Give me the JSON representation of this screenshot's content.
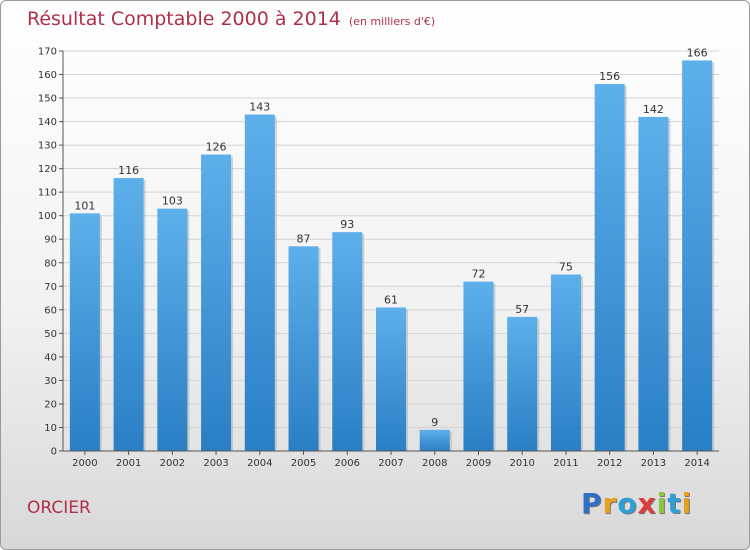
{
  "title": "Résultat Comptable 2000 à 2014",
  "subtitle": "(en milliers d'€)",
  "commune": "ORCIER",
  "logo": {
    "letters": [
      {
        "ch": "P",
        "color": "#2f6fc6"
      },
      {
        "ch": "r",
        "color": "#e8a020"
      },
      {
        "ch": "o",
        "color": "#2f9fd8"
      },
      {
        "ch": "x",
        "color": "#e03a3a"
      },
      {
        "ch": "i",
        "color": "#8cc63f"
      },
      {
        "ch": "t",
        "color": "#2f9fd8"
      },
      {
        "ch": "i",
        "color": "#e8a020"
      }
    ]
  },
  "colors": {
    "bar_top": "#5db0ea",
    "bar_bottom": "#2a7ec4",
    "title": "#b0304a"
  },
  "chart_data": {
    "type": "bar",
    "title": "Résultat Comptable 2000 à 2014",
    "subtitle": "(en milliers d'€)",
    "categories": [
      "2000",
      "2001",
      "2002",
      "2003",
      "2004",
      "2005",
      "2006",
      "2007",
      "2008",
      "2009",
      "2010",
      "2011",
      "2012",
      "2013",
      "2014"
    ],
    "values": [
      101,
      116,
      103,
      126,
      143,
      87,
      93,
      61,
      9,
      72,
      57,
      75,
      156,
      142,
      166
    ],
    "ylim": [
      0,
      170
    ],
    "yticks": [
      0,
      10,
      20,
      30,
      40,
      50,
      60,
      70,
      80,
      90,
      100,
      110,
      120,
      130,
      140,
      150,
      160,
      170
    ],
    "grid": true,
    "data_labels": true
  }
}
